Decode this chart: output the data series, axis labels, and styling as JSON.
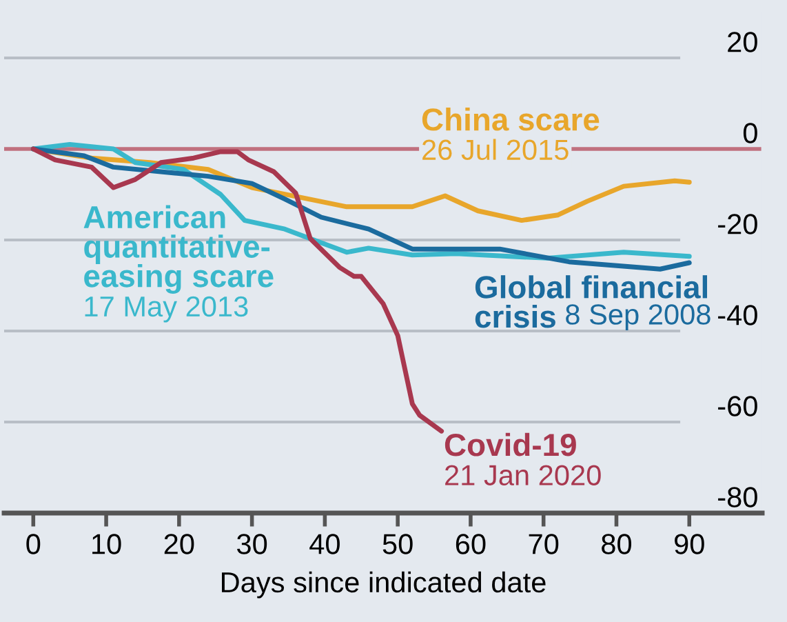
{
  "chart_data": {
    "type": "line",
    "xlabel": "Days since indicated date",
    "x": [
      0,
      3,
      8,
      11,
      14,
      17.5,
      22,
      25.7,
      28,
      29.5,
      33,
      36,
      38,
      42,
      44,
      45,
      48,
      50,
      52,
      53,
      56
    ],
    "xlim": [
      -4,
      100
    ],
    "xticks": [
      0,
      10,
      20,
      30,
      40,
      50,
      60,
      70,
      80,
      90
    ],
    "ylim": [
      -80,
      30
    ],
    "yticks": [
      20,
      0,
      -20,
      -40,
      -60,
      -80
    ],
    "grid": "y",
    "legend": false,
    "marker": "none",
    "line_style": "solid",
    "ref_lines": [
      {
        "axis": "y",
        "value": 0,
        "color": "#c0707e"
      }
    ],
    "series": [
      {
        "name": "China scare",
        "color": "#e8a62b",
        "x": [
          0,
          8,
          16,
          24,
          30,
          36.5,
          43,
          48,
          52,
          56.5,
          61,
          67,
          72,
          76,
          81,
          88,
          90
        ],
        "values": [
          0,
          -2,
          -3,
          -4.5,
          -8.5,
          -10.6,
          -12.7,
          -12.7,
          -12.7,
          -10.3,
          -13.6,
          -15.7,
          -14.5,
          -11.5,
          -8.2,
          -7,
          -7.3
        ]
      },
      {
        "name": "American\nquantitative-\neasing scare",
        "color": "#3ab8cc",
        "x": [
          0,
          5,
          11,
          14,
          20.6,
          25.7,
          29,
          34.5,
          39.5,
          43,
          46,
          52,
          58,
          70.5,
          81,
          90
        ],
        "values": [
          0,
          1,
          0,
          -3,
          -4.5,
          -10,
          -15.7,
          -17.6,
          -20.6,
          -22.7,
          -21.8,
          -23.3,
          -23,
          -24,
          -22.7,
          -23.6
        ]
      },
      {
        "name": "Global financial\ncrisis",
        "color": "#1b6b9e",
        "x": [
          0,
          7,
          11,
          17.5,
          24,
          30,
          34.5,
          39.5,
          46,
          52,
          54.7,
          64,
          73.5,
          86,
          90
        ],
        "values": [
          0,
          -1.5,
          -4,
          -5,
          -6,
          -7.6,
          -11,
          -15,
          -17.6,
          -22,
          -22,
          -22,
          -24.8,
          -26.4,
          -25
        ]
      },
      {
        "name": "Covid-19",
        "color": "#a8384f",
        "values": [
          0,
          -2.4,
          -4,
          -8.5,
          -6.7,
          -3,
          -2,
          -0.6,
          -0.6,
          -2.4,
          -5,
          -9.7,
          -19.7,
          -26,
          -28,
          -28,
          -34,
          -41,
          -56,
          -58.5,
          -62
        ]
      }
    ],
    "annotations": [
      "26 Jul 2015",
      "17 May 2013",
      "8 Sep 2008",
      "21 Jan 2020"
    ]
  }
}
